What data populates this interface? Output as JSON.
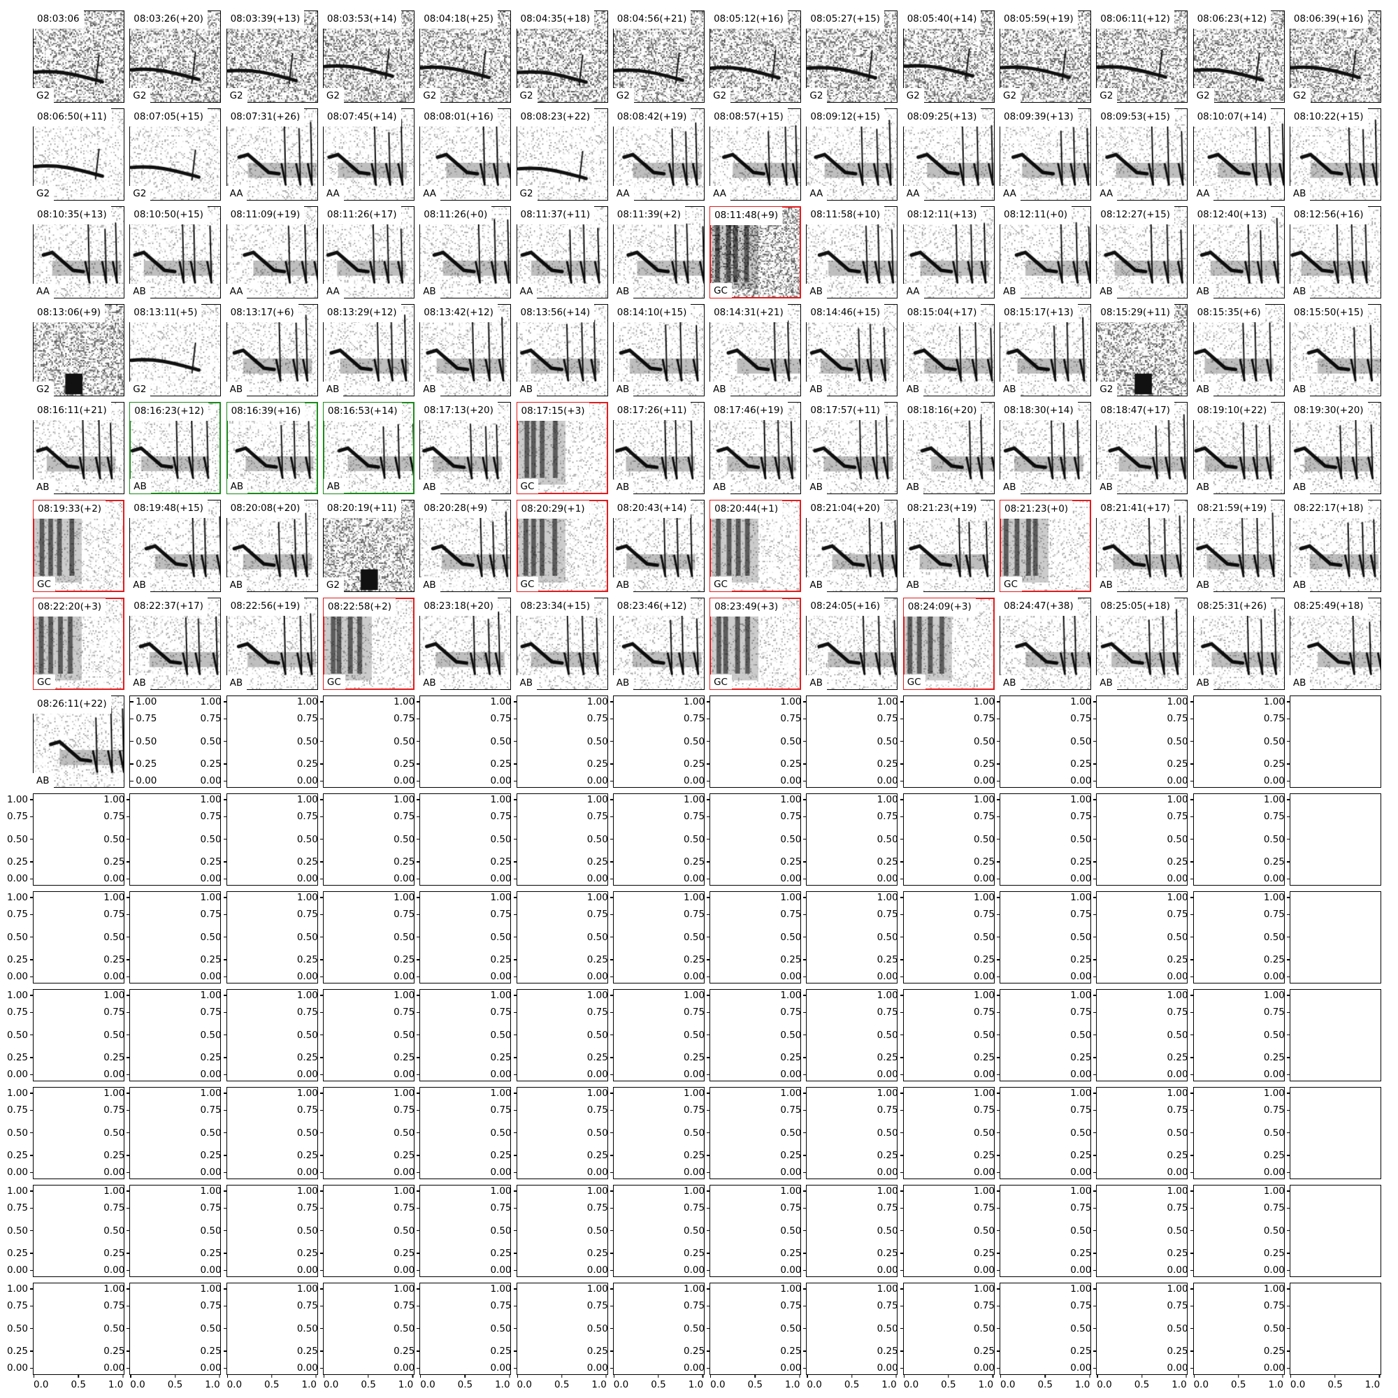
{
  "figure": {
    "columns": 14,
    "rows": 14,
    "border_colors": {
      "black": "#000000",
      "red": "#e41a1c",
      "green": "#1a8a1a"
    },
    "panels": [
      {
        "title": "08:03:06",
        "label": "G2",
        "border": "black"
      },
      {
        "title": "08:03:26(+20)",
        "label": "G2",
        "border": "black"
      },
      {
        "title": "08:03:39(+13)",
        "label": "G2",
        "border": "black"
      },
      {
        "title": "08:03:53(+14)",
        "label": "G2",
        "border": "black"
      },
      {
        "title": "08:04:18(+25)",
        "label": "G2",
        "border": "black"
      },
      {
        "title": "08:04:35(+18)",
        "label": "G2",
        "border": "black"
      },
      {
        "title": "08:04:56(+21)",
        "label": "G2",
        "border": "black"
      },
      {
        "title": "08:05:12(+16)",
        "label": "G2",
        "border": "black"
      },
      {
        "title": "08:05:27(+15)",
        "label": "G2",
        "border": "black"
      },
      {
        "title": "08:05:40(+14)",
        "label": "G2",
        "border": "black"
      },
      {
        "title": "08:05:59(+19)",
        "label": "G2",
        "border": "black"
      },
      {
        "title": "08:06:11(+12)",
        "label": "G2",
        "border": "black"
      },
      {
        "title": "08:06:23(+12)",
        "label": "G2",
        "border": "black"
      },
      {
        "title": "08:06:39(+16)",
        "label": "G2",
        "border": "black"
      },
      {
        "title": "08:06:50(+11)",
        "label": "G2",
        "border": "black"
      },
      {
        "title": "08:07:05(+15)",
        "label": "G2",
        "border": "black"
      },
      {
        "title": "08:07:31(+26)",
        "label": "AA",
        "border": "black"
      },
      {
        "title": "08:07:45(+14)",
        "label": "AA",
        "border": "black"
      },
      {
        "title": "08:08:01(+16)",
        "label": "AA",
        "border": "black"
      },
      {
        "title": "08:08:23(+22)",
        "label": "G2",
        "border": "black"
      },
      {
        "title": "08:08:42(+19)",
        "label": "AA",
        "border": "black"
      },
      {
        "title": "08:08:57(+15)",
        "label": "AA",
        "border": "black"
      },
      {
        "title": "08:09:12(+15)",
        "label": "AA",
        "border": "black"
      },
      {
        "title": "08:09:25(+13)",
        "label": "AA",
        "border": "black"
      },
      {
        "title": "08:09:39(+13)",
        "label": "AA",
        "border": "black"
      },
      {
        "title": "08:09:53(+15)",
        "label": "AA",
        "border": "black"
      },
      {
        "title": "08:10:07(+14)",
        "label": "AA",
        "border": "black"
      },
      {
        "title": "08:10:22(+15)",
        "label": "AB",
        "border": "black"
      },
      {
        "title": "08:10:35(+13)",
        "label": "AA",
        "border": "black"
      },
      {
        "title": "08:10:50(+15)",
        "label": "AB",
        "border": "black"
      },
      {
        "title": "08:11:09(+19)",
        "label": "AA",
        "border": "black"
      },
      {
        "title": "08:11:26(+17)",
        "label": "AA",
        "border": "black"
      },
      {
        "title": "08:11:26(+0)",
        "label": "AB",
        "border": "black"
      },
      {
        "title": "08:11:37(+11)",
        "label": "AA",
        "border": "black"
      },
      {
        "title": "08:11:39(+2)",
        "label": "AB",
        "border": "black"
      },
      {
        "title": "08:11:48(+9)",
        "label": "GC",
        "border": "red"
      },
      {
        "title": "08:11:58(+10)",
        "label": "AB",
        "border": "black"
      },
      {
        "title": "08:12:11(+13)",
        "label": "AA",
        "border": "black"
      },
      {
        "title": "08:12:11(+0)",
        "label": "AB",
        "border": "black"
      },
      {
        "title": "08:12:27(+15)",
        "label": "AB",
        "border": "black"
      },
      {
        "title": "08:12:40(+13)",
        "label": "AB",
        "border": "black"
      },
      {
        "title": "08:12:56(+16)",
        "label": "AB",
        "border": "black"
      },
      {
        "title": "08:13:06(+9)",
        "label": "G2",
        "border": "black"
      },
      {
        "title": "08:13:11(+5)",
        "label": "G2",
        "border": "black"
      },
      {
        "title": "08:13:17(+6)",
        "label": "AB",
        "border": "black"
      },
      {
        "title": "08:13:29(+12)",
        "label": "AB",
        "border": "black"
      },
      {
        "title": "08:13:42(+12)",
        "label": "AB",
        "border": "black"
      },
      {
        "title": "08:13:56(+14)",
        "label": "AB",
        "border": "black"
      },
      {
        "title": "08:14:10(+15)",
        "label": "AB",
        "border": "black"
      },
      {
        "title": "08:14:31(+21)",
        "label": "AB",
        "border": "black"
      },
      {
        "title": "08:14:46(+15)",
        "label": "AB",
        "border": "black"
      },
      {
        "title": "08:15:04(+17)",
        "label": "AB",
        "border": "black"
      },
      {
        "title": "08:15:17(+13)",
        "label": "AB",
        "border": "black"
      },
      {
        "title": "08:15:29(+11)",
        "label": "G2",
        "border": "black"
      },
      {
        "title": "08:15:35(+6)",
        "label": "AB",
        "border": "black"
      },
      {
        "title": "08:15:50(+15)",
        "label": "AB",
        "border": "black"
      },
      {
        "title": "08:16:11(+21)",
        "label": "AB",
        "border": "black"
      },
      {
        "title": "08:16:23(+12)",
        "label": "AB",
        "border": "green"
      },
      {
        "title": "08:16:39(+16)",
        "label": "AB",
        "border": "green"
      },
      {
        "title": "08:16:53(+14)",
        "label": "AB",
        "border": "green"
      },
      {
        "title": "08:17:13(+20)",
        "label": "AB",
        "border": "black"
      },
      {
        "title": "08:17:15(+3)",
        "label": "GC",
        "border": "red"
      },
      {
        "title": "08:17:26(+11)",
        "label": "AB",
        "border": "black"
      },
      {
        "title": "08:17:46(+19)",
        "label": "AB",
        "border": "black"
      },
      {
        "title": "08:17:57(+11)",
        "label": "AB",
        "border": "black"
      },
      {
        "title": "08:18:16(+20)",
        "label": "AB",
        "border": "black"
      },
      {
        "title": "08:18:30(+14)",
        "label": "AB",
        "border": "black"
      },
      {
        "title": "08:18:47(+17)",
        "label": "AB",
        "border": "black"
      },
      {
        "title": "08:19:10(+22)",
        "label": "AB",
        "border": "black"
      },
      {
        "title": "08:19:30(+20)",
        "label": "AB",
        "border": "black"
      },
      {
        "title": "08:19:33(+2)",
        "label": "GC",
        "border": "red"
      },
      {
        "title": "08:19:48(+15)",
        "label": "AB",
        "border": "black"
      },
      {
        "title": "08:20:08(+20)",
        "label": "AB",
        "border": "black"
      },
      {
        "title": "08:20:19(+11)",
        "label": "G2",
        "border": "black"
      },
      {
        "title": "08:20:28(+9)",
        "label": "AB",
        "border": "black"
      },
      {
        "title": "08:20:29(+1)",
        "label": "GC",
        "border": "red"
      },
      {
        "title": "08:20:43(+14)",
        "label": "AB",
        "border": "black"
      },
      {
        "title": "08:20:44(+1)",
        "label": "GC",
        "border": "red"
      },
      {
        "title": "08:21:04(+20)",
        "label": "AB",
        "border": "black"
      },
      {
        "title": "08:21:23(+19)",
        "label": "AB",
        "border": "black"
      },
      {
        "title": "08:21:23(+0)",
        "label": "GC",
        "border": "red"
      },
      {
        "title": "08:21:41(+17)",
        "label": "AB",
        "border": "black"
      },
      {
        "title": "08:21:59(+19)",
        "label": "AB",
        "border": "black"
      },
      {
        "title": "08:22:17(+18)",
        "label": "AB",
        "border": "black"
      },
      {
        "title": "08:22:20(+3)",
        "label": "GC",
        "border": "red"
      },
      {
        "title": "08:22:37(+17)",
        "label": "AB",
        "border": "black"
      },
      {
        "title": "08:22:56(+19)",
        "label": "AB",
        "border": "black"
      },
      {
        "title": "08:22:58(+2)",
        "label": "GC",
        "border": "red"
      },
      {
        "title": "08:23:18(+20)",
        "label": "AB",
        "border": "black"
      },
      {
        "title": "08:23:34(+15)",
        "label": "AB",
        "border": "black"
      },
      {
        "title": "08:23:46(+12)",
        "label": "AB",
        "border": "black"
      },
      {
        "title": "08:23:49(+3)",
        "label": "GC",
        "border": "red"
      },
      {
        "title": "08:24:05(+16)",
        "label": "AB",
        "border": "black"
      },
      {
        "title": "08:24:09(+3)",
        "label": "GC",
        "border": "red"
      },
      {
        "title": "08:24:47(+38)",
        "label": "AB",
        "border": "black"
      },
      {
        "title": "08:25:05(+18)",
        "label": "AB",
        "border": "black"
      },
      {
        "title": "08:25:31(+26)",
        "label": "AB",
        "border": "black"
      },
      {
        "title": "08:25:49(+18)",
        "label": "AB",
        "border": "black"
      },
      {
        "title": "08:26:11(+22)",
        "label": "AB",
        "border": "black"
      }
    ],
    "empty_axes": {
      "yticks": [
        "0.00",
        "0.25",
        "0.50",
        "0.75",
        "1.00"
      ],
      "xticks": [
        "0.0",
        "0.5",
        "1.0"
      ]
    }
  }
}
